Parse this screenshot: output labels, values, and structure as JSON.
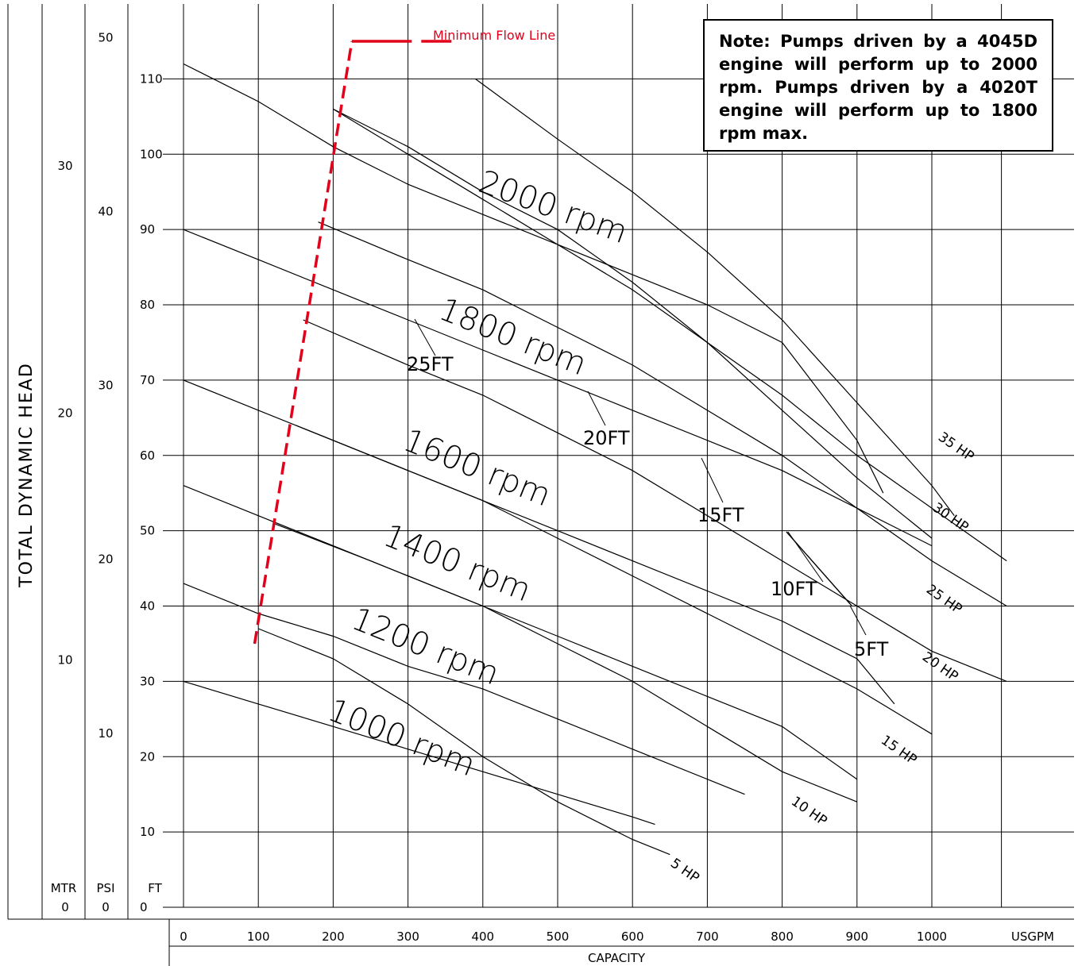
{
  "chart_data": {
    "type": "line",
    "title": "",
    "xlabel": "CAPACITY",
    "x_unit_label": "USGPM",
    "ylabel": "TOTAL DYNAMIC HEAD",
    "xlim": [
      0,
      1000
    ],
    "ylim": [
      0,
      115
    ],
    "grid": true,
    "x_ticks": [
      0,
      100,
      200,
      300,
      400,
      500,
      600,
      700,
      800,
      900,
      1000
    ],
    "y_axes": [
      {
        "unit": "FT",
        "ticks": [
          0,
          10,
          20,
          30,
          40,
          50,
          60,
          70,
          80,
          90,
          100,
          110
        ]
      },
      {
        "unit": "PSI",
        "ticks": [
          0,
          10,
          20,
          30,
          40,
          50
        ]
      },
      {
        "unit": "MTR",
        "ticks": [
          0,
          10,
          20,
          30
        ]
      }
    ],
    "speed_curves": [
      {
        "name": "2000 rpm",
        "label": "2000 rpm",
        "points": [
          [
            200,
            106
          ],
          [
            300,
            101
          ],
          [
            400,
            95
          ],
          [
            500,
            90
          ],
          [
            600,
            83
          ],
          [
            700,
            75
          ],
          [
            800,
            66
          ],
          [
            900,
            57
          ],
          [
            1000,
            49
          ]
        ]
      },
      {
        "name": "1800 rpm",
        "label": "1800 rpm",
        "points": [
          [
            0,
            112
          ],
          [
            100,
            107
          ],
          [
            200,
            101
          ],
          [
            300,
            96
          ],
          [
            400,
            92
          ],
          [
            500,
            88
          ],
          [
            600,
            84
          ],
          [
            700,
            80
          ],
          [
            800,
            75
          ],
          [
            900,
            62
          ],
          [
            935,
            55
          ]
        ]
      },
      {
        "name": "1800 rpm (lower)",
        "label": "",
        "points": [
          [
            0,
            90
          ],
          [
            100,
            86
          ],
          [
            200,
            82
          ],
          [
            300,
            78
          ],
          [
            400,
            74
          ],
          [
            500,
            70
          ],
          [
            600,
            66
          ],
          [
            700,
            62
          ],
          [
            800,
            58
          ],
          [
            900,
            53
          ],
          [
            1000,
            48
          ]
        ]
      },
      {
        "name": "1600 rpm",
        "label": "1600 rpm",
        "points": [
          [
            0,
            70
          ],
          [
            100,
            66
          ],
          [
            200,
            62
          ],
          [
            300,
            58
          ],
          [
            400,
            54
          ],
          [
            500,
            50
          ],
          [
            600,
            46
          ],
          [
            700,
            42
          ],
          [
            800,
            38
          ],
          [
            900,
            33
          ],
          [
            950,
            27
          ]
        ]
      },
      {
        "name": "1400 rpm",
        "label": "1400 rpm",
        "points": [
          [
            0,
            56
          ],
          [
            100,
            52
          ],
          [
            200,
            48
          ],
          [
            300,
            44
          ],
          [
            400,
            40
          ],
          [
            500,
            36
          ],
          [
            600,
            32
          ],
          [
            700,
            28
          ],
          [
            800,
            24
          ],
          [
            900,
            17
          ]
        ]
      },
      {
        "name": "1200 rpm",
        "label": "1200 rpm",
        "points": [
          [
            0,
            43
          ],
          [
            100,
            39
          ],
          [
            200,
            36
          ],
          [
            300,
            32
          ],
          [
            400,
            29
          ],
          [
            500,
            25
          ],
          [
            600,
            21
          ],
          [
            700,
            17
          ],
          [
            750,
            15
          ]
        ]
      },
      {
        "name": "1000 rpm",
        "label": "1000 rpm",
        "points": [
          [
            0,
            30
          ],
          [
            100,
            27
          ],
          [
            200,
            24
          ],
          [
            300,
            21
          ],
          [
            400,
            18
          ],
          [
            500,
            15
          ],
          [
            600,
            12
          ],
          [
            630,
            11
          ]
        ]
      }
    ],
    "power_curves": [
      {
        "label": "35 HP",
        "points": [
          [
            390,
            110
          ],
          [
            500,
            102
          ],
          [
            600,
            95
          ],
          [
            700,
            87
          ],
          [
            800,
            78
          ],
          [
            900,
            67
          ],
          [
            1000,
            56
          ],
          [
            1030,
            52
          ]
        ]
      },
      {
        "label": "30 HP",
        "points": [
          [
            200,
            106
          ],
          [
            300,
            100
          ],
          [
            400,
            94
          ],
          [
            500,
            88
          ],
          [
            600,
            82
          ],
          [
            700,
            75
          ],
          [
            800,
            68
          ],
          [
            900,
            60
          ],
          [
            1000,
            53
          ],
          [
            1100,
            46
          ]
        ]
      },
      {
        "label": "25 HP",
        "points": [
          [
            180,
            91
          ],
          [
            300,
            86
          ],
          [
            400,
            82
          ],
          [
            500,
            77
          ],
          [
            600,
            72
          ],
          [
            700,
            66
          ],
          [
            800,
            60
          ],
          [
            900,
            53
          ],
          [
            1000,
            46
          ],
          [
            1100,
            40
          ]
        ]
      },
      {
        "label": "20 HP",
        "points": [
          [
            160,
            78
          ],
          [
            300,
            72
          ],
          [
            400,
            68
          ],
          [
            500,
            63
          ],
          [
            600,
            58
          ],
          [
            700,
            52
          ],
          [
            800,
            46
          ],
          [
            900,
            40
          ],
          [
            1000,
            34
          ],
          [
            1100,
            30
          ]
        ]
      },
      {
        "label": "15 HP",
        "points": [
          [
            150,
            64
          ],
          [
            300,
            58
          ],
          [
            400,
            54
          ],
          [
            500,
            49
          ],
          [
            600,
            44
          ],
          [
            700,
            39
          ],
          [
            800,
            34
          ],
          [
            900,
            29
          ],
          [
            1000,
            23
          ]
        ]
      },
      {
        "label": "10 HP",
        "points": [
          [
            120,
            51
          ],
          [
            250,
            46
          ],
          [
            400,
            40
          ],
          [
            500,
            35
          ],
          [
            600,
            30
          ],
          [
            700,
            24
          ],
          [
            800,
            18
          ],
          [
            900,
            14
          ]
        ]
      },
      {
        "label": "5 HP",
        "points": [
          [
            100,
            37
          ],
          [
            200,
            33
          ],
          [
            300,
            27
          ],
          [
            400,
            20
          ],
          [
            500,
            14
          ],
          [
            600,
            9
          ],
          [
            650,
            7
          ]
        ]
      }
    ],
    "npsh_labels": [
      "25FT",
      "20FT",
      "15FT",
      "10FT",
      "5FT"
    ],
    "minimum_flow_line": {
      "label": "Minimum Flow Line",
      "points": [
        [
          95,
          35
        ],
        [
          225,
          115
        ],
        [
          305,
          115
        ]
      ],
      "color": "#e3001b"
    },
    "note": "Note: Pumps driven by a 4045D engine will perform up to 2000 rpm. Pumps driven by a 4020T engine will perform up to 1800 rpm max."
  },
  "colors": {
    "line": "#000000",
    "accent": "#e3001b"
  }
}
